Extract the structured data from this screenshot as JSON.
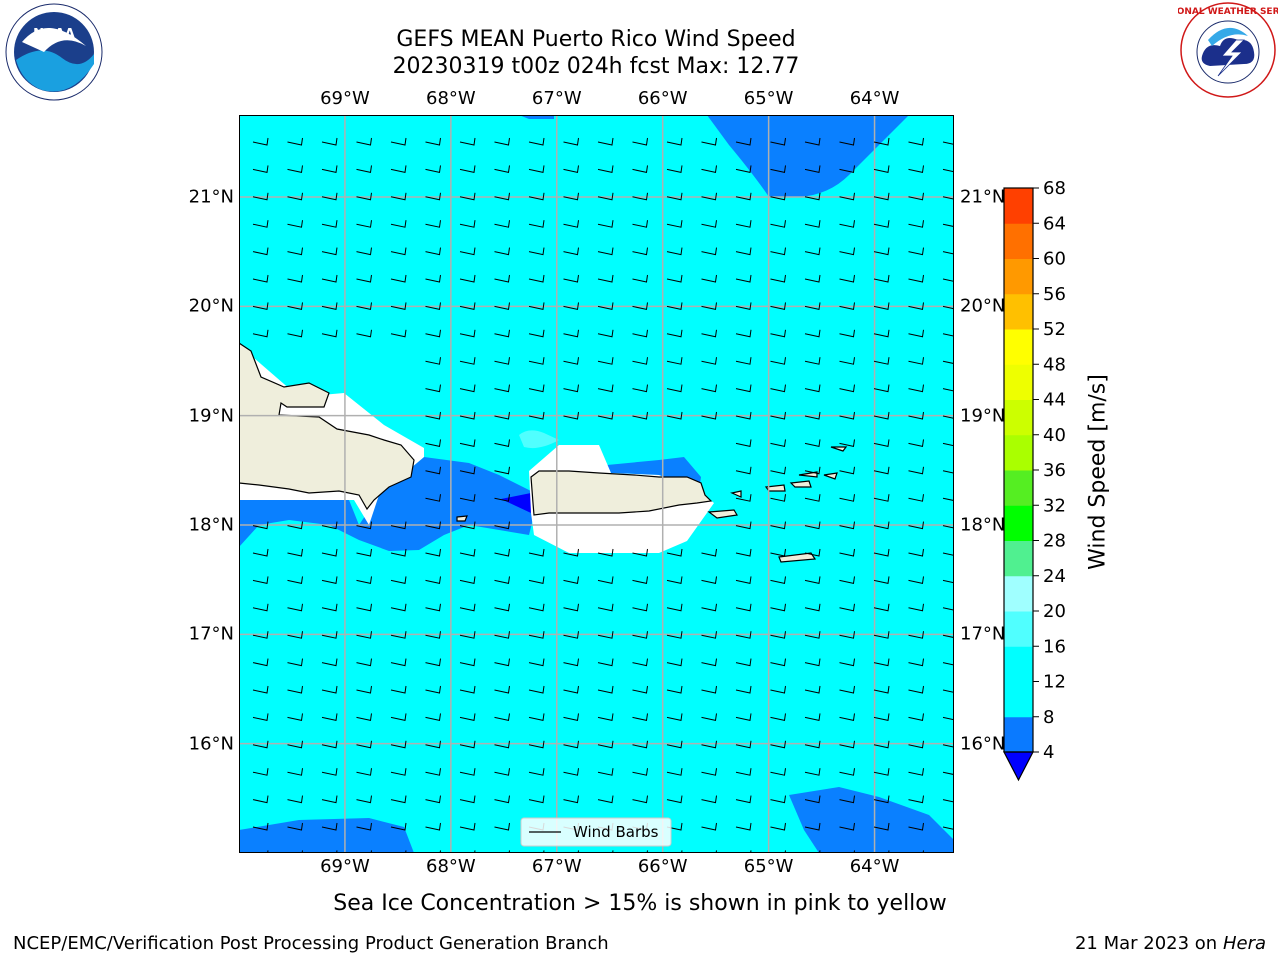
{
  "title_line1": "GEFS MEAN Puerto Rico Wind Speed",
  "title_line2": "20230319 t00z 024h fcst   Max: 12.77",
  "logos": {
    "left": "NOAA",
    "left_ring": "NATIONAL OCEANIC AND ATMOSPHERIC ADMINISTRATION",
    "left_ring_bottom": "U.S. DEPARTMENT OF COMMERCE",
    "right_ring": "NATIONAL WEATHER SERVICE"
  },
  "lon_ticks": [
    "69°W",
    "68°W",
    "67°W",
    "66°W",
    "65°W",
    "64°W"
  ],
  "lat_ticks": [
    "21°N",
    "20°N",
    "19°N",
    "18°N",
    "17°N",
    "16°N"
  ],
  "lon_values": [
    -69,
    -68,
    -67,
    -66,
    -65,
    -64
  ],
  "lat_values": [
    21,
    20,
    19,
    18,
    17,
    16
  ],
  "map_extent": {
    "lon": [
      -70,
      -63.25
    ],
    "lat": [
      15,
      21.75
    ]
  },
  "legend_label": "Wind Barbs",
  "colorbar": {
    "label": "Wind Speed [m/s]",
    "levels": [
      "4",
      "8",
      "12",
      "16",
      "20",
      "24",
      "28",
      "32",
      "36",
      "40",
      "44",
      "48",
      "52",
      "56",
      "60",
      "64",
      "68"
    ],
    "colors": [
      "#0a7aff",
      "#00ffff",
      "#00ffff",
      "#50ffff",
      "#a0ffff",
      "#50f090",
      "#00ff00",
      "#55ee22",
      "#aaff00",
      "#ccff00",
      "#eeff00",
      "#ffff00",
      "#ffc000",
      "#ff9900",
      "#ff7000",
      "#ff4000",
      "#ff0000",
      "#ff0000"
    ],
    "under_color": "#0000ff"
  },
  "colors": {
    "ocean_main": "#00ffff",
    "ocean_mid": "#0a80ff",
    "ocean_low": "#0000ff",
    "land": "#efeedc"
  },
  "caption": "Sea Ice Concentration > 15% is shown in pink to yellow",
  "footer_left": "NCEP/EMC/Verification Post Processing Product Generation Branch",
  "footer_date": "21 Mar 2023",
  "footer_on": "on",
  "footer_machine": "Hera"
}
